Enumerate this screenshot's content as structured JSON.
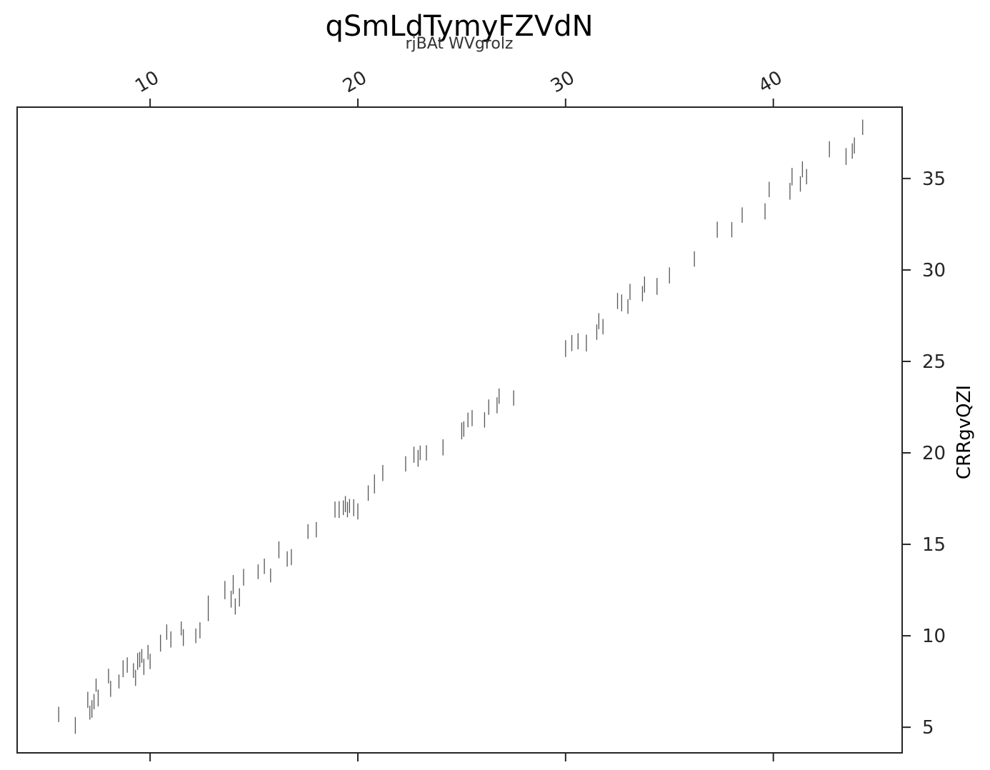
{
  "chart_data": {
    "type": "scatter",
    "marker": "vertical-line",
    "title": "qSmLdTymyFZVdN",
    "subtitle": "rjBAt WVgrolz",
    "xlabel": "",
    "ylabel": "CRRgvQZI",
    "xlim": [
      3.6,
      46.2
    ],
    "ylim": [
      3.6,
      38.9
    ],
    "x_ticks": [
      10,
      20,
      30,
      40
    ],
    "x_tick_position": "top",
    "y_ticks": [
      5,
      10,
      15,
      20,
      25,
      30,
      35
    ],
    "y_tick_position": "right",
    "grid": false,
    "colors": {
      "marker": "#555555",
      "axis": "#262626"
    },
    "series": [
      {
        "x": [
          5.6,
          6.4,
          7.0,
          7.1,
          7.2,
          7.3,
          7.4,
          7.5,
          8.0,
          8.1,
          8.5,
          8.7,
          8.9,
          9.2,
          9.3,
          9.4,
          9.5,
          9.6,
          9.7,
          9.9,
          10.0,
          10.5,
          10.8,
          11.0,
          11.5,
          11.6,
          12.2,
          12.4,
          12.8,
          13.6,
          13.9,
          14.0,
          14.1,
          14.3,
          14.5,
          15.2,
          15.5,
          15.8,
          16.2,
          16.6,
          16.8,
          17.6,
          18.0,
          18.9,
          19.1,
          19.3,
          19.4,
          19.5,
          19.6,
          19.8,
          20.0,
          20.5,
          20.8,
          21.2,
          22.3,
          22.7,
          22.9,
          23.0,
          23.3,
          24.1,
          25.0,
          25.1,
          25.3,
          25.5,
          26.1,
          26.3,
          26.7,
          26.8,
          27.5,
          30.0,
          30.3,
          30.6,
          31.0,
          31.5,
          31.6,
          31.8,
          32.5,
          32.7,
          33.0,
          33.1,
          33.7,
          33.8,
          34.4,
          35.0,
          36.2,
          37.3,
          38.0,
          38.5,
          39.6,
          39.8,
          40.8,
          40.9,
          41.3,
          41.4,
          41.6,
          42.7,
          43.5,
          43.8,
          43.9,
          44.3
        ],
        "y": [
          5.7,
          5.1,
          6.5,
          5.8,
          6.0,
          6.4,
          7.3,
          6.6,
          7.8,
          7.1,
          7.5,
          8.2,
          8.4,
          8.1,
          7.7,
          8.6,
          8.7,
          8.9,
          8.3,
          9.1,
          8.6,
          9.6,
          10.2,
          9.8,
          10.4,
          9.9,
          10.0,
          10.3,
          11.4,
          12.5,
          12.0,
          12.8,
          11.6,
          12.1,
          13.2,
          13.5,
          13.8,
          13.3,
          14.7,
          14.2,
          14.3,
          15.7,
          15.8,
          16.9,
          16.9,
          17.0,
          17.2,
          16.9,
          17.1,
          17.0,
          16.8,
          17.8,
          18.3,
          18.9,
          19.4,
          19.9,
          19.7,
          20.0,
          20.0,
          20.3,
          21.2,
          21.3,
          21.8,
          21.9,
          21.8,
          22.5,
          22.6,
          23.1,
          23.0,
          25.7,
          26.0,
          26.1,
          26.0,
          26.6,
          27.2,
          26.9,
          28.3,
          28.2,
          28.0,
          28.8,
          28.7,
          29.2,
          29.1,
          29.7,
          30.6,
          32.2,
          32.2,
          33.0,
          33.2,
          34.4,
          34.3,
          35.1,
          34.7,
          35.5,
          35.1,
          36.6,
          36.2,
          36.5,
          36.8,
          37.8
        ],
        "err_lo": [
          0.42,
          0.46,
          0.44,
          0.38,
          0.48,
          0.42,
          0.36,
          0.46,
          0.4,
          0.44,
          0.38,
          0.46,
          0.42,
          0.4,
          0.44,
          0.46,
          0.42,
          0.38,
          0.44,
          0.4,
          0.42,
          0.46,
          0.42,
          0.44,
          0.38,
          0.46,
          0.4,
          0.44,
          0.6,
          0.5,
          0.46,
          0.52,
          0.44,
          0.5,
          0.46,
          0.4,
          0.42,
          0.38,
          0.46,
          0.42,
          0.44,
          0.4,
          0.42,
          0.44,
          0.46,
          0.4,
          0.44,
          0.42,
          0.38,
          0.46,
          0.44,
          0.42,
          0.52,
          0.44,
          0.42,
          0.44,
          0.46,
          0.4,
          0.42,
          0.44,
          0.46,
          0.42,
          0.4,
          0.44,
          0.42,
          0.42,
          0.44,
          0.42,
          0.42,
          0.46,
          0.44,
          0.44,
          0.46,
          0.42,
          0.44,
          0.42,
          0.44,
          0.46,
          0.4,
          0.44,
          0.42,
          0.44,
          0.46,
          0.44,
          0.42,
          0.44,
          0.42,
          0.42,
          0.44,
          0.42,
          0.46,
          0.48,
          0.42,
          0.44,
          0.42,
          0.44,
          0.46,
          0.42,
          0.44,
          0.42
        ],
        "err_hi": [
          0.42,
          0.46,
          0.44,
          0.38,
          0.48,
          0.42,
          0.36,
          0.46,
          0.4,
          0.44,
          0.38,
          0.46,
          0.42,
          0.4,
          0.44,
          0.46,
          0.42,
          0.38,
          0.44,
          0.4,
          0.42,
          0.46,
          0.42,
          0.44,
          0.38,
          0.46,
          0.4,
          0.44,
          0.8,
          0.5,
          0.46,
          0.52,
          0.44,
          0.5,
          0.46,
          0.4,
          0.42,
          0.38,
          0.46,
          0.42,
          0.44,
          0.4,
          0.42,
          0.44,
          0.46,
          0.4,
          0.44,
          0.42,
          0.38,
          0.46,
          0.44,
          0.42,
          0.52,
          0.44,
          0.42,
          0.44,
          0.46,
          0.4,
          0.42,
          0.44,
          0.46,
          0.42,
          0.4,
          0.44,
          0.42,
          0.42,
          0.44,
          0.42,
          0.42,
          0.46,
          0.44,
          0.44,
          0.46,
          0.42,
          0.44,
          0.42,
          0.44,
          0.46,
          0.4,
          0.44,
          0.42,
          0.44,
          0.46,
          0.44,
          0.42,
          0.44,
          0.42,
          0.42,
          0.44,
          0.42,
          0.46,
          0.48,
          0.42,
          0.44,
          0.42,
          0.44,
          0.46,
          0.42,
          0.44,
          0.42
        ]
      }
    ]
  }
}
